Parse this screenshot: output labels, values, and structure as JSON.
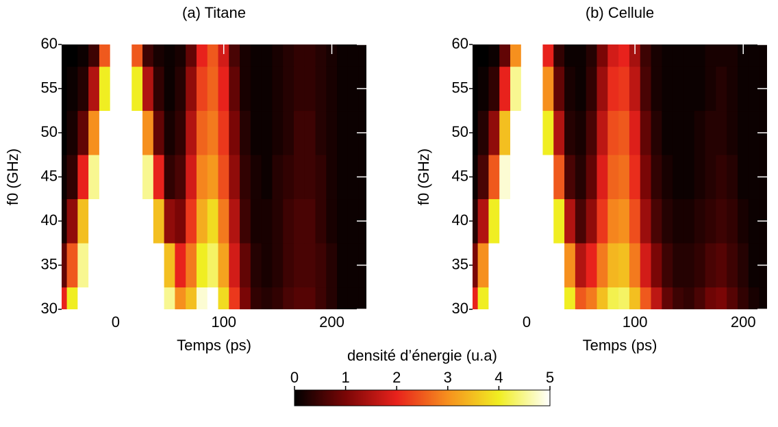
{
  "chart_data": [
    {
      "type": "heatmap",
      "title": "(a)  Titane",
      "xlabel": "Temps (ps)",
      "ylabel": "f0 (GHz)",
      "xlim": [
        -50,
        232
      ],
      "ylim": [
        30,
        60
      ],
      "xticks": [
        0,
        100,
        200
      ],
      "yticks": [
        30,
        35,
        40,
        45,
        50,
        55,
        60
      ],
      "x": [
        -50,
        -40,
        -30,
        -20,
        -10,
        0,
        10,
        20,
        30,
        40,
        50,
        60,
        70,
        80,
        90,
        100,
        110,
        120,
        130,
        140,
        150,
        160,
        170,
        180,
        190,
        200,
        210,
        220,
        230
      ],
      "y": [
        30,
        35,
        40,
        45,
        50,
        55,
        60
      ],
      "z": [
        [
          2,
          4,
          5,
          5,
          5,
          5,
          5,
          5,
          5,
          5,
          4.5,
          3,
          3.5,
          4.8,
          5,
          3.8,
          2.2,
          1,
          0.4,
          0.3,
          0.4,
          0.6,
          0.7,
          0.7,
          0.5,
          0.3,
          0.1,
          0.1,
          0.1
        ],
        [
          0.8,
          2.5,
          4.5,
          5,
          5,
          5,
          5,
          5,
          5,
          5,
          3.5,
          2,
          2.8,
          4,
          4.3,
          3.2,
          1.8,
          0.8,
          0.3,
          0.2,
          0.3,
          0.5,
          0.6,
          0.6,
          0.5,
          0.3,
          0.1,
          0.1,
          0.1
        ],
        [
          0.2,
          1.2,
          3.5,
          5,
          5,
          5,
          5,
          5,
          5,
          3.5,
          1.2,
          1,
          2.2,
          3.3,
          3.8,
          2.8,
          1.5,
          0.5,
          0.2,
          0.2,
          0.3,
          0.5,
          0.6,
          0.6,
          0.4,
          0.2,
          0.1,
          0.1,
          0.1
        ],
        [
          0.1,
          0.4,
          2,
          4.5,
          5,
          5,
          5,
          5,
          4.5,
          2,
          0.4,
          0.6,
          1.8,
          2.9,
          3.1,
          2.4,
          1.2,
          0.4,
          0.2,
          0.1,
          0.3,
          0.4,
          0.5,
          0.5,
          0.4,
          0.2,
          0.1,
          0.1,
          0.1
        ],
        [
          0,
          0.2,
          0.8,
          3,
          5,
          5,
          5,
          5,
          3,
          0.8,
          0.2,
          0.4,
          1.5,
          2.6,
          2.8,
          2.2,
          1,
          0.3,
          0.1,
          0.1,
          0.2,
          0.3,
          0.5,
          0.5,
          0.3,
          0.2,
          0.1,
          0.1,
          0.1
        ],
        [
          0,
          0.1,
          0.3,
          1.5,
          4,
          5,
          5,
          4,
          1.5,
          0.4,
          0.1,
          0.3,
          1.2,
          2.3,
          2.6,
          2,
          0.8,
          0.2,
          0.1,
          0.1,
          0.2,
          0.3,
          0.4,
          0.4,
          0.3,
          0.2,
          0.1,
          0.1,
          0.1
        ],
        [
          0,
          0,
          0.1,
          0.5,
          2.5,
          5,
          5,
          2.5,
          0.5,
          0.2,
          0.1,
          0.2,
          0.8,
          2,
          2.5,
          1.8,
          0.6,
          0.2,
          0.1,
          0.1,
          0.2,
          0.3,
          0.4,
          0.4,
          0.3,
          0.2,
          0.1,
          0.1,
          0.1
        ]
      ]
    },
    {
      "type": "heatmap",
      "title": "(b)   Cellule",
      "xlabel": "Temps (ps)",
      "ylabel": "f0 (GHz)",
      "xlim": [
        -50,
        222
      ],
      "ylim": [
        30,
        60
      ],
      "xticks": [
        0,
        100,
        200
      ],
      "yticks": [
        30,
        35,
        40,
        45,
        50,
        55,
        60
      ],
      "x": [
        -50,
        -40,
        -30,
        -20,
        -10,
        0,
        10,
        20,
        30,
        40,
        50,
        60,
        70,
        80,
        90,
        100,
        110,
        120,
        130,
        140,
        150,
        160,
        170,
        180,
        190,
        200,
        210,
        220
      ],
      "y": [
        30,
        35,
        40,
        45,
        50,
        55,
        60
      ],
      "z": [
        [
          2,
          4,
          5,
          5,
          5,
          5,
          5,
          5,
          5,
          4,
          2.5,
          2.8,
          3.5,
          4.2,
          4.3,
          3.5,
          2.5,
          1.6,
          0.8,
          0.5,
          0.4,
          0.6,
          0.9,
          1,
          0.7,
          0.4,
          0.2,
          0.1
        ],
        [
          1,
          3,
          5,
          5,
          5,
          5,
          5,
          5,
          5,
          3,
          1.5,
          2,
          2.8,
          3.4,
          3.5,
          2.8,
          1.8,
          1,
          0.5,
          0.3,
          0.3,
          0.4,
          0.6,
          0.7,
          0.5,
          0.3,
          0.1,
          0.1
        ],
        [
          0.3,
          1.5,
          4,
          5,
          5,
          5,
          5,
          5,
          4,
          1.5,
          0.6,
          1.2,
          2.2,
          2.9,
          3,
          2.4,
          1.3,
          0.6,
          0.3,
          0.2,
          0.2,
          0.3,
          0.4,
          0.5,
          0.4,
          0.2,
          0.1,
          0.1
        ],
        [
          0.1,
          0.6,
          2.5,
          4.8,
          5,
          5,
          5,
          5,
          2.5,
          0.6,
          0.3,
          0.8,
          1.9,
          2.6,
          2.7,
          2.1,
          1,
          0.4,
          0.2,
          0.1,
          0.1,
          0.2,
          0.3,
          0.4,
          0.3,
          0.1,
          0.1,
          0.1
        ],
        [
          0,
          0.3,
          1.2,
          3.5,
          5,
          5,
          5,
          4,
          1.5,
          0.3,
          0.2,
          0.6,
          1.6,
          2.4,
          2.5,
          1.9,
          0.8,
          0.3,
          0.1,
          0.1,
          0.1,
          0.2,
          0.3,
          0.3,
          0.2,
          0.1,
          0.1,
          0.1
        ],
        [
          0,
          0.1,
          0.4,
          2,
          4.5,
          5,
          5,
          3,
          0.8,
          0.2,
          0.1,
          0.4,
          1.3,
          2.1,
          2.2,
          1.6,
          0.6,
          0.2,
          0.1,
          0.1,
          0.1,
          0.1,
          0.2,
          0.3,
          0.2,
          0.1,
          0.1,
          0.1
        ],
        [
          0,
          0,
          0.1,
          0.8,
          3,
          5,
          5,
          2,
          0.4,
          0.1,
          0.1,
          0.3,
          1,
          1.8,
          2,
          1.4,
          0.5,
          0.2,
          0.1,
          0.1,
          0.1,
          0.1,
          0.2,
          0.2,
          0.2,
          0.1,
          0.1,
          0.1
        ]
      ]
    }
  ],
  "colorbar": {
    "label": "densité d’énergie (u.a)",
    "lim": [
      0,
      5
    ],
    "ticks": [
      0,
      1,
      2,
      3,
      4,
      5
    ],
    "colors": [
      "#000000",
      "#7a0606",
      "#e8221c",
      "#f6901e",
      "#f0ee22",
      "#ffffff"
    ]
  }
}
